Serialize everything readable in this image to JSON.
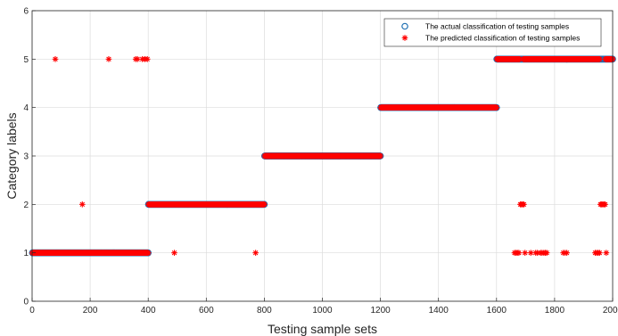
{
  "chart_data": {
    "type": "scatter",
    "xlabel": "Testing sample sets",
    "ylabel": "Category labels",
    "xlim": [
      0,
      2000
    ],
    "ylim": [
      0,
      6
    ],
    "xticks": [
      0,
      200,
      400,
      600,
      800,
      1000,
      1200,
      1400,
      1600,
      1800,
      2000
    ],
    "yticks": [
      0,
      1,
      2,
      3,
      4,
      5,
      6
    ],
    "grid": true,
    "legend_position": "top-right",
    "series": [
      {
        "name": "The actual classification of testing samples",
        "marker": "circle",
        "color": "#1f6fb2",
        "segments": [
          {
            "x_start": 1,
            "x_end": 400,
            "y": 1
          },
          {
            "x_start": 401,
            "x_end": 800,
            "y": 2
          },
          {
            "x_start": 801,
            "x_end": 1200,
            "y": 3
          },
          {
            "x_start": 1201,
            "x_end": 1600,
            "y": 4
          },
          {
            "x_start": 1601,
            "x_end": 2000,
            "y": 5
          }
        ],
        "points": []
      },
      {
        "name": "The predicted classification of testing samples",
        "marker": "asterisk",
        "color": "#ff0000",
        "segments": [
          {
            "x_start": 1,
            "x_end": 400,
            "y": 1
          },
          {
            "x_start": 401,
            "x_end": 800,
            "y": 2
          },
          {
            "x_start": 801,
            "x_end": 1200,
            "y": 3
          },
          {
            "x_start": 1201,
            "x_end": 1600,
            "y": 4
          },
          {
            "x_start": 1601,
            "x_end": 1680,
            "y": 5
          },
          {
            "x_start": 1692,
            "x_end": 1955,
            "y": 5
          },
          {
            "x_start": 1975,
            "x_end": 2000,
            "y": 5
          }
        ],
        "exclude": [
          {
            "x": 80,
            "y": 1
          },
          {
            "x": 173,
            "y": 1
          },
          {
            "x": 264,
            "y": 1
          },
          {
            "x": 357,
            "y": 1
          },
          {
            "x": 363,
            "y": 1
          },
          {
            "x": 380,
            "y": 1
          },
          {
            "x": 389,
            "y": 1
          },
          {
            "x": 397,
            "y": 1
          },
          {
            "x": 490,
            "y": 2
          },
          {
            "x": 770,
            "y": 2
          }
        ],
        "points": [
          {
            "x": 80,
            "y": 5
          },
          {
            "x": 173,
            "y": 2
          },
          {
            "x": 264,
            "y": 5
          },
          {
            "x": 357,
            "y": 5
          },
          {
            "x": 363,
            "y": 5
          },
          {
            "x": 380,
            "y": 5
          },
          {
            "x": 389,
            "y": 5
          },
          {
            "x": 397,
            "y": 5
          },
          {
            "x": 490,
            "y": 1
          },
          {
            "x": 770,
            "y": 1
          },
          {
            "x": 1662,
            "y": 1
          },
          {
            "x": 1667,
            "y": 1
          },
          {
            "x": 1672,
            "y": 1
          },
          {
            "x": 1677,
            "y": 1
          },
          {
            "x": 1682,
            "y": 2
          },
          {
            "x": 1686,
            "y": 2
          },
          {
            "x": 1690,
            "y": 2
          },
          {
            "x": 1694,
            "y": 2
          },
          {
            "x": 1698,
            "y": 1
          },
          {
            "x": 1718,
            "y": 1
          },
          {
            "x": 1735,
            "y": 1
          },
          {
            "x": 1741,
            "y": 1
          },
          {
            "x": 1752,
            "y": 1
          },
          {
            "x": 1757,
            "y": 1
          },
          {
            "x": 1763,
            "y": 1
          },
          {
            "x": 1768,
            "y": 1
          },
          {
            "x": 1773,
            "y": 1
          },
          {
            "x": 1830,
            "y": 1
          },
          {
            "x": 1836,
            "y": 1
          },
          {
            "x": 1842,
            "y": 1
          },
          {
            "x": 1940,
            "y": 1
          },
          {
            "x": 1945,
            "y": 1
          },
          {
            "x": 1950,
            "y": 1
          },
          {
            "x": 1955,
            "y": 1
          },
          {
            "x": 1958,
            "y": 2
          },
          {
            "x": 1962,
            "y": 2
          },
          {
            "x": 1966,
            "y": 2
          },
          {
            "x": 1970,
            "y": 2
          },
          {
            "x": 1974,
            "y": 2
          },
          {
            "x": 1978,
            "y": 1
          }
        ]
      }
    ]
  }
}
